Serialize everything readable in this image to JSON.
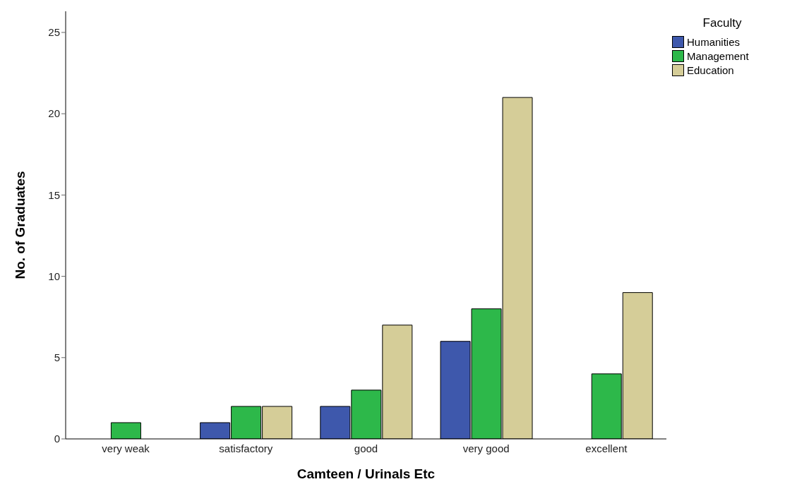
{
  "chart_data": {
    "type": "bar",
    "xlabel": "Camteen / Urinals Etc",
    "ylabel": "No. of Graduates",
    "legend_title": "Faculty",
    "categories": [
      "very weak",
      "satisfactory",
      "good",
      "very good",
      "excellent"
    ],
    "series": [
      {
        "name": "Humanities",
        "color": "#3e58ac",
        "values": [
          0,
          1,
          2,
          6,
          0
        ]
      },
      {
        "name": "Management",
        "color": "#2db84a",
        "values": [
          1,
          2,
          3,
          8,
          4
        ]
      },
      {
        "name": "Education",
        "color": "#d5cd98",
        "values": [
          0,
          2,
          7,
          21,
          9
        ]
      }
    ],
    "ylim": [
      0,
      26.3
    ],
    "yticks": [
      0,
      5,
      10,
      15,
      20,
      25
    ],
    "grid": false,
    "legend": "top right"
  }
}
